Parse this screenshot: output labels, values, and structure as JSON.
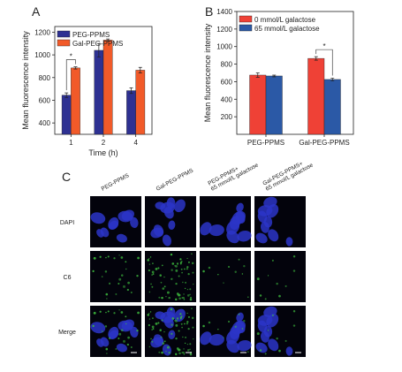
{
  "chart_data": [
    {
      "type": "bar",
      "panel": "A",
      "y_label": "Mean fluorescence intensity",
      "x_label": "Time (h)",
      "categories": [
        "1",
        "2",
        "4"
      ],
      "series": [
        {
          "name": "PEG-PPMS",
          "color": "#2e3192",
          "values": [
            645,
            1040,
            685
          ],
          "errors": [
            20,
            60,
            25
          ]
        },
        {
          "name": "Gal-PEG-PPMS",
          "color": "#f15a29",
          "values": [
            885,
            1130,
            865
          ],
          "errors": [
            10,
            10,
            25
          ]
        }
      ],
      "ylim": [
        300,
        1250
      ],
      "yticks": [
        400,
        600,
        800,
        1000,
        1200
      ],
      "legend": "upper left",
      "annotations": [
        "*"
      ]
    },
    {
      "type": "bar",
      "panel": "B",
      "y_label": "Mean fluorescence intensity",
      "categories": [
        "PEG-PPMS",
        "Gal-PEG-PPMS"
      ],
      "series": [
        {
          "name": "0 mmol/L galactose",
          "color": "#ef4136",
          "values": [
            675,
            865
          ],
          "errors": [
            25,
            20
          ]
        },
        {
          "name": "65 mmol/L galactose",
          "color": "#2b59a6",
          "values": [
            665,
            625
          ],
          "errors": [
            10,
            15
          ]
        }
      ],
      "ylim": [
        0,
        1400
      ],
      "yticks": [
        200,
        400,
        600,
        800,
        1000,
        1200,
        1400
      ],
      "legend": "upper left",
      "annotations": [
        "*"
      ]
    }
  ],
  "panel_c": {
    "label": "C",
    "columns": [
      [
        "PEG-PPMS"
      ],
      [
        "Gal-PEG-PPMS"
      ],
      [
        "PEG-PPMS+",
        "65 mmol/L galactose"
      ],
      [
        "Gal-PEG-PPMS+",
        "65 mmol/L galactose"
      ]
    ],
    "rows": [
      "DAPI",
      "C6",
      "Merge"
    ]
  }
}
